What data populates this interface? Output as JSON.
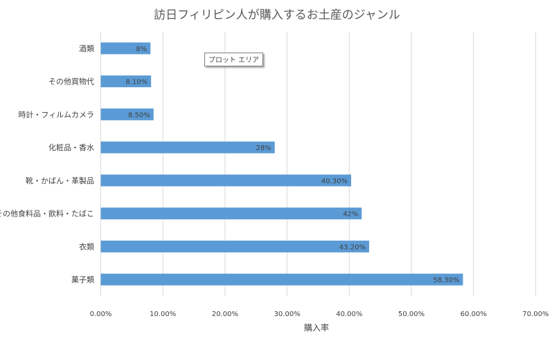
{
  "chart_data": {
    "type": "bar",
    "orientation": "horizontal",
    "title": "訪日フィリピン人が購入するお土産のジャンル",
    "xlabel": "購入率",
    "ylabel": "",
    "xlim": [
      0,
      70
    ],
    "x_ticks": [
      "0.00%",
      "10.00%",
      "20.00%",
      "30.00%",
      "40.00%",
      "50.00%",
      "60.00%",
      "70.00%"
    ],
    "grid": "vertical",
    "categories": [
      "酒類",
      "その他買物代",
      "時計・フィルムカメラ",
      "化粧品・香水",
      "靴・かばん・革製品",
      "その他食料品・飲料・たばこ",
      "衣類",
      "菓子類"
    ],
    "values": [
      8,
      8.1,
      8.5,
      28,
      40.3,
      42,
      43.2,
      58.3
    ],
    "data_labels": [
      "8%",
      "8.10%",
      "8.50%",
      "28%",
      "40.30%",
      "42%",
      "43.20%",
      "58.30%"
    ]
  },
  "colors": {
    "bar": "#5b9bd5",
    "grid": "#d9d9d9",
    "text": "#404040"
  },
  "tooltip": {
    "label": "プロット エリア"
  }
}
